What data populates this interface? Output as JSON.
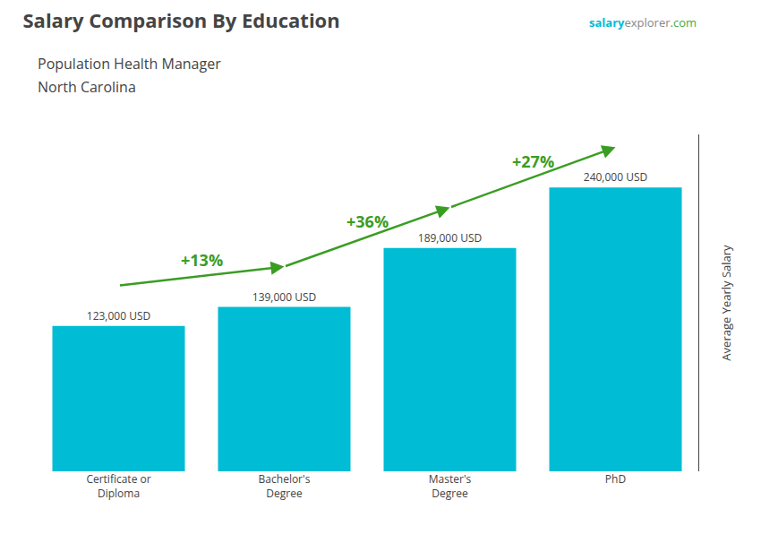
{
  "chart_data": {
    "type": "bar",
    "title": "Salary Comparison By Education",
    "subtitle": "Population Health Manager",
    "location": "North Carolina",
    "watermark": [
      {
        "text": "salary",
        "color": "#00bcd4"
      },
      {
        "text": "explorer",
        "color": "#888888"
      },
      {
        "text": ".com",
        "color": "#44aa44"
      }
    ],
    "ylabel": "Average Yearly Salary",
    "categories": [
      "Certificate or\nDiploma",
      "Bachelor's\nDegree",
      "Master's\nDegree",
      "PhD"
    ],
    "values": [
      123000,
      139000,
      189000,
      240000
    ],
    "value_labels": [
      "123,000 USD",
      "139,000 USD",
      "189,000 USD",
      "240,000 USD"
    ],
    "data_labels": true,
    "color": "#00bcd4",
    "annotations": [
      {
        "text": "+13%",
        "color": "#3a9d23"
      },
      {
        "text": "+36%",
        "color": "#3a9d23"
      },
      {
        "text": "+27%",
        "color": "#3a9d23"
      }
    ],
    "ylim": [
      0,
      285000
    ],
    "yticks": [],
    "tick_labels": "x",
    "grid": false
  }
}
